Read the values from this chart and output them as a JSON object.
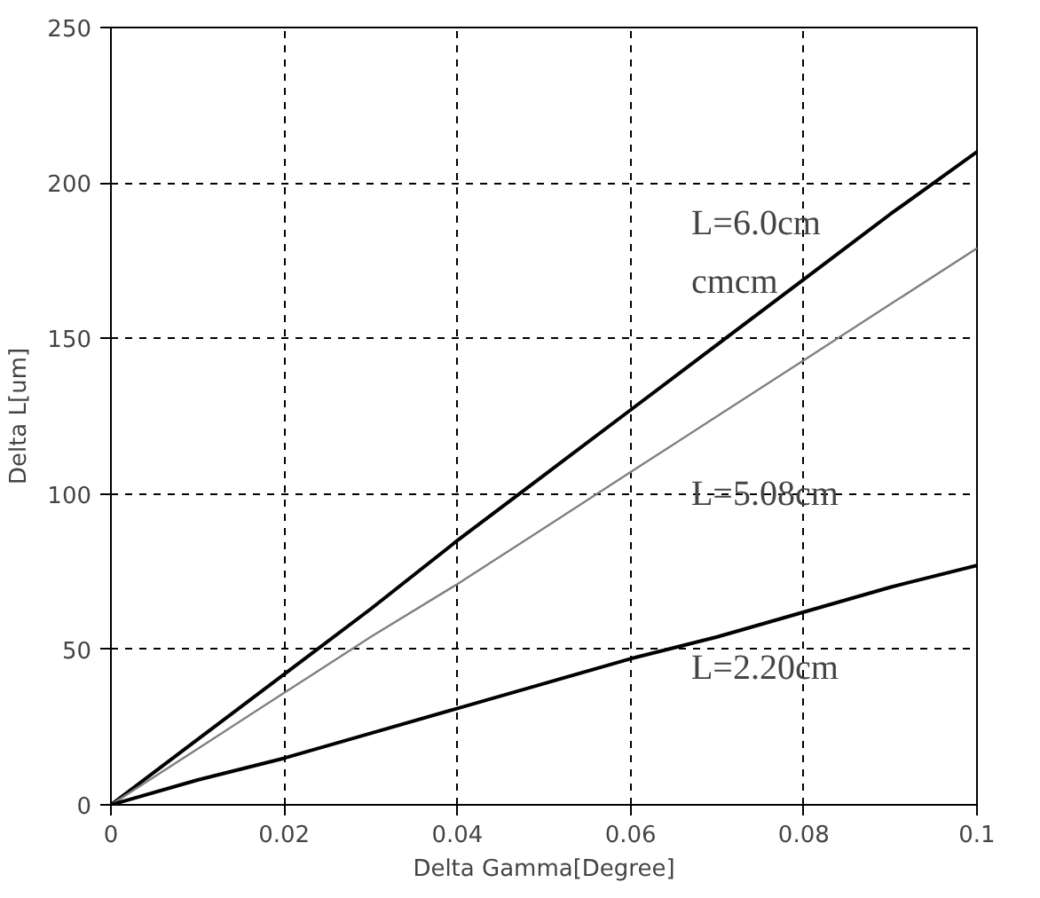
{
  "chart_data": {
    "type": "line",
    "xlabel": "Delta Gamma[Degree]",
    "ylabel": "Delta L[um]",
    "x": [
      0,
      0.01,
      0.02,
      0.03,
      0.04,
      0.05,
      0.06,
      0.07,
      0.08,
      0.09,
      0.1
    ],
    "series": [
      {
        "name": "L=6.0cm",
        "color": "#000000",
        "values": [
          0,
          21,
          42,
          63,
          85,
          106,
          127,
          148,
          169,
          190,
          210
        ]
      },
      {
        "name": "L=5.08cm",
        "color": "#808080",
        "values": [
          0,
          18,
          36,
          54,
          71,
          89,
          107,
          125,
          143,
          161,
          179
        ]
      },
      {
        "name": "L=2.20cm",
        "color": "#000000",
        "values": [
          0,
          8,
          15,
          23,
          31,
          39,
          47,
          54,
          62,
          70,
          77
        ]
      }
    ],
    "annotations": [
      "cmcm"
    ],
    "xlim": [
      0,
      0.1
    ],
    "xticks": [
      0,
      0.02,
      0.04,
      0.06,
      0.08,
      0.1
    ],
    "ylim": [
      0,
      250
    ],
    "yticks": [
      0,
      50,
      100,
      150,
      200,
      250
    ],
    "grid": true,
    "line_style": "solid"
  }
}
